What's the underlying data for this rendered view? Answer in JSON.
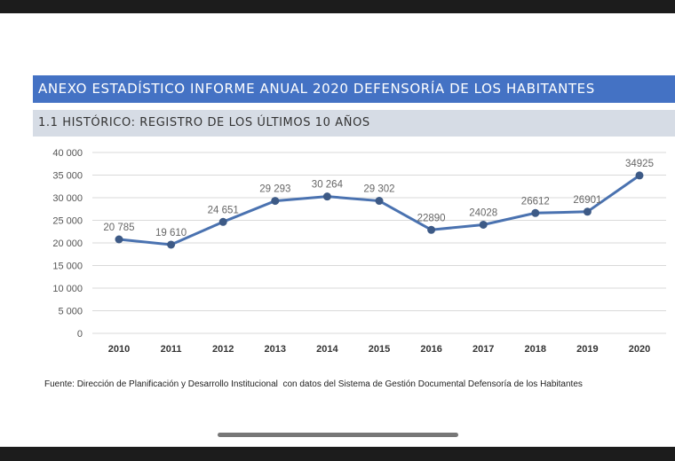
{
  "header": {
    "title": "ANEXO ESTADÍSTICO INFORME ANUAL 2020 DEFENSORÍA DE LOS HABITANTES",
    "subtitle": "1.1 HISTÓRICO: REGISTRO DE LOS ÚLTIMOS 10 AÑOS"
  },
  "source": "Fuente: Dirección de Planificación y Desarrollo Institucional  con datos del Sistema de Gestión Documental Defensoría de los Habitantes",
  "chart_data": {
    "type": "line",
    "title": "1.1 HISTÓRICO: REGISTRO DE LOS ÚLTIMOS 10 AÑOS",
    "categories": [
      "2010",
      "2011",
      "2012",
      "2013",
      "2014",
      "2015",
      "2016",
      "2017",
      "2018",
      "2019",
      "2020"
    ],
    "values": [
      20785,
      19610,
      24651,
      29293,
      30264,
      29302,
      22890,
      24028,
      26612,
      26901,
      34925
    ],
    "data_labels": [
      "20 785",
      "19 610",
      "24 651",
      "29 293",
      "30 264",
      "29 302",
      "22890",
      "24028",
      "26612",
      "26901",
      "34925"
    ],
    "ylim": [
      0,
      40000
    ],
    "yticks": [
      "0",
      "5 000",
      "10 000",
      "15 000",
      "20 000",
      "25 000",
      "30 000",
      "35 000",
      "40 000"
    ],
    "grid": true,
    "line_color": "#4a72b0",
    "xlabel": "",
    "ylabel": ""
  }
}
